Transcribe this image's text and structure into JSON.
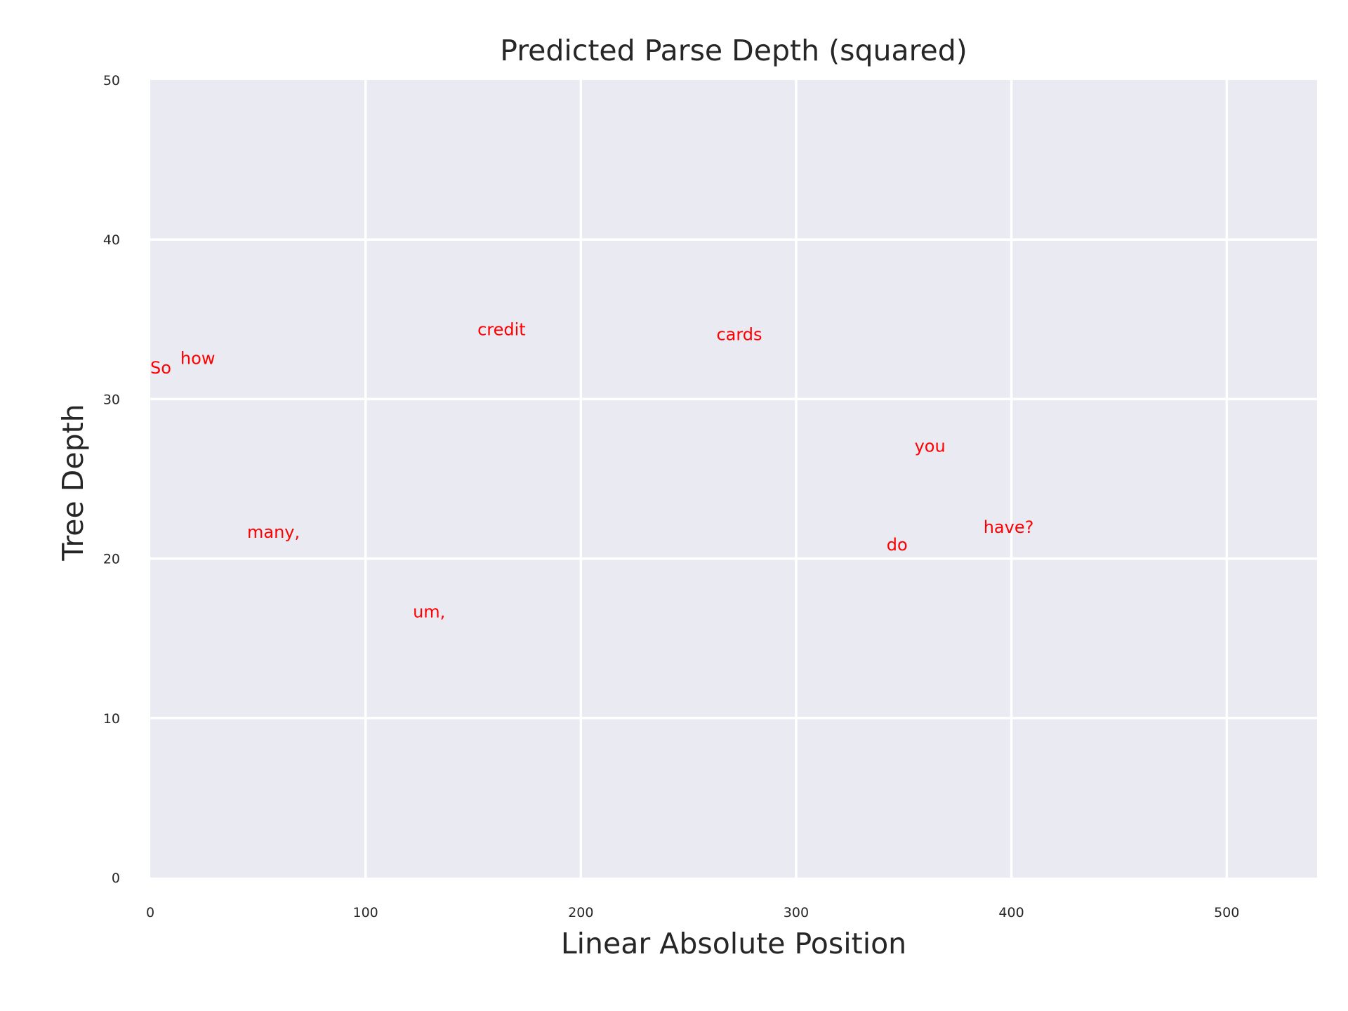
{
  "chart_data": {
    "type": "scatter",
    "title": "Predicted Parse Depth (squared)",
    "xlabel": "Linear Absolute Position",
    "ylabel": "Tree Depth",
    "xlim": [
      0,
      542
    ],
    "ylim": [
      0,
      50
    ],
    "xticks": [
      0,
      100,
      200,
      300,
      400,
      500
    ],
    "yticks": [
      0,
      10,
      20,
      30,
      40,
      50
    ],
    "xtick_labels": [
      "0",
      "100",
      "200",
      "300",
      "400",
      "500"
    ],
    "ytick_labels": [
      "0",
      "10",
      "20",
      "30",
      "40",
      "50"
    ],
    "grid": true,
    "colors": {
      "background": "#eaeaf2",
      "grid": "#ffffff",
      "points": "#ff0000",
      "text": "#262626"
    },
    "points": [
      {
        "label": "So",
        "x": 0,
        "y": 31.6
      },
      {
        "label": "how",
        "x": 14,
        "y": 32.2
      },
      {
        "label": "many,",
        "x": 45,
        "y": 21.3
      },
      {
        "label": "um,",
        "x": 122,
        "y": 16.3
      },
      {
        "label": "credit",
        "x": 152,
        "y": 34.0
      },
      {
        "label": "cards",
        "x": 263,
        "y": 33.7
      },
      {
        "label": "do",
        "x": 342,
        "y": 20.5
      },
      {
        "label": "you",
        "x": 355,
        "y": 26.7
      },
      {
        "label": "have?",
        "x": 387,
        "y": 21.6
      }
    ]
  }
}
